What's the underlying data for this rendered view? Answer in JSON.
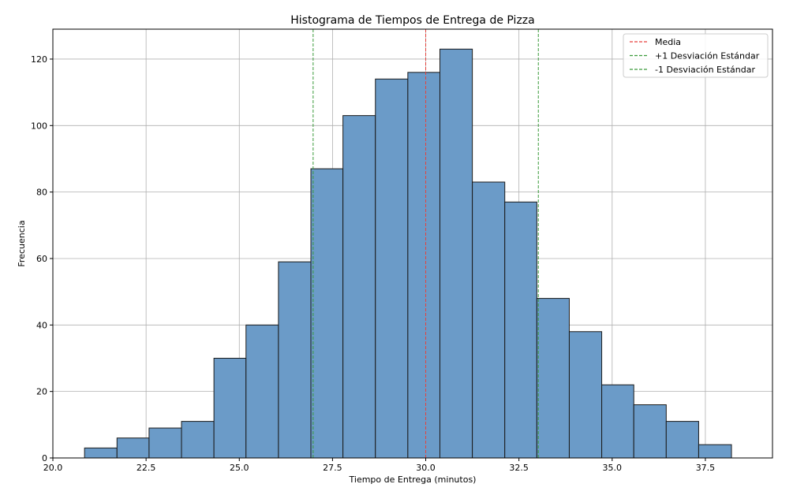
{
  "chart_data": {
    "type": "histogram",
    "title": "Histograma de Tiempos de Entrega de Pizza",
    "xlabel": "Tiempo de Entrega (minutos)",
    "ylabel": "Frecuencia",
    "xlim": [
      20.0,
      39.3
    ],
    "ylim": [
      0,
      129
    ],
    "xticks": [
      20.0,
      22.5,
      25.0,
      27.5,
      30.0,
      32.5,
      35.0,
      37.5
    ],
    "xtick_labels": [
      "20.0",
      "22.5",
      "25.0",
      "27.5",
      "30.0",
      "32.5",
      "35.0",
      "37.5"
    ],
    "yticks": [
      0,
      20,
      40,
      60,
      80,
      100,
      120
    ],
    "ytick_labels": [
      "0",
      "20",
      "40",
      "60",
      "80",
      "100",
      "120"
    ],
    "grid": true,
    "bar_color": "#6b9bc8",
    "bar_edge_color": "#1a1a1a",
    "bins": [
      {
        "x0": 20.85,
        "x1": 21.72,
        "count": 3
      },
      {
        "x0": 21.72,
        "x1": 22.58,
        "count": 6
      },
      {
        "x0": 22.58,
        "x1": 23.45,
        "count": 9
      },
      {
        "x0": 23.45,
        "x1": 24.32,
        "count": 11
      },
      {
        "x0": 24.32,
        "x1": 25.18,
        "count": 30
      },
      {
        "x0": 25.18,
        "x1": 26.05,
        "count": 40
      },
      {
        "x0": 26.05,
        "x1": 26.92,
        "count": 59
      },
      {
        "x0": 26.92,
        "x1": 27.78,
        "count": 87
      },
      {
        "x0": 27.78,
        "x1": 28.65,
        "count": 103
      },
      {
        "x0": 28.65,
        "x1": 29.52,
        "count": 114
      },
      {
        "x0": 29.52,
        "x1": 30.38,
        "count": 116
      },
      {
        "x0": 30.38,
        "x1": 31.25,
        "count": 123
      },
      {
        "x0": 31.25,
        "x1": 32.12,
        "count": 83
      },
      {
        "x0": 32.12,
        "x1": 32.98,
        "count": 77
      },
      {
        "x0": 32.98,
        "x1": 33.85,
        "count": 48
      },
      {
        "x0": 33.85,
        "x1": 34.72,
        "count": 38
      },
      {
        "x0": 34.72,
        "x1": 35.58,
        "count": 22
      },
      {
        "x0": 35.58,
        "x1": 36.45,
        "count": 16
      },
      {
        "x0": 36.45,
        "x1": 37.32,
        "count": 11
      },
      {
        "x0": 37.32,
        "x1": 38.2,
        "count": 4
      }
    ],
    "reference_lines": [
      {
        "name": "Media",
        "x": 30.0,
        "color": "#e8413c"
      },
      {
        "name": "+1 Desviación Estándar",
        "x": 33.02,
        "color": "#3a9a3a"
      },
      {
        "name": "-1 Desviación Estándar",
        "x": 26.98,
        "color": "#3a9a3a"
      }
    ],
    "legend_position": "top-right"
  }
}
